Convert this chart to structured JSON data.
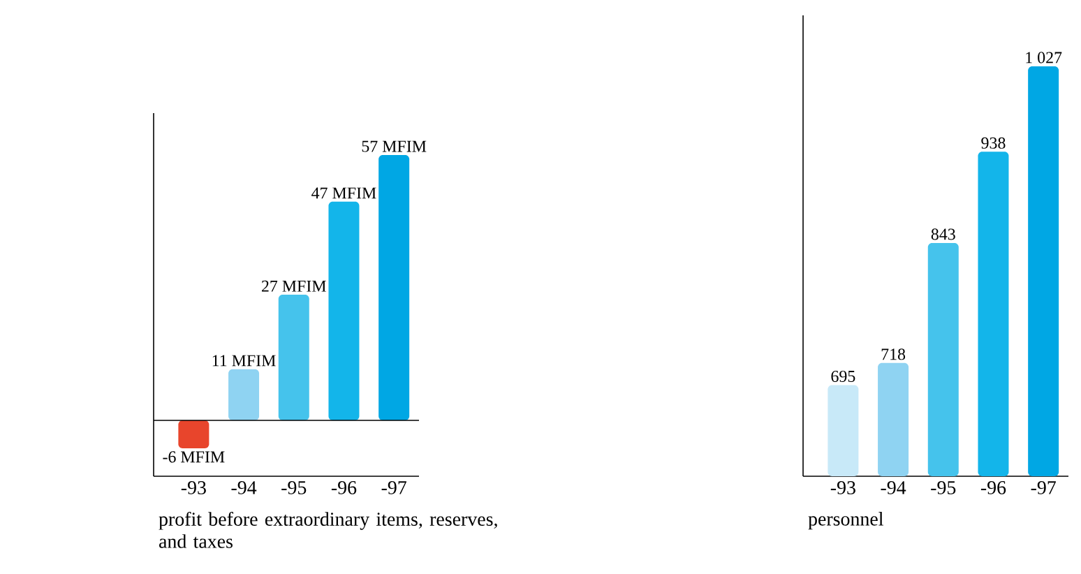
{
  "chart_data": [
    {
      "type": "bar",
      "categories": [
        "-93",
        "-94",
        "-95",
        "-96",
        "-97"
      ],
      "values": [
        -6,
        11,
        27,
        47,
        57
      ],
      "value_labels": [
        "-6 MFIM",
        "11 MFIM",
        "27 MFIM",
        "47 MFIM",
        "57 MFIM"
      ],
      "colors": [
        "#e8452c",
        "#8fd3f2",
        "#45c3ec",
        "#13b5ea",
        "#00a7e4"
      ],
      "ylim": [
        -12,
        66
      ],
      "xlabel": "profit before extraordinary items, reserves, and taxes",
      "tick_labels": "x"
    },
    {
      "type": "bar",
      "categories": [
        "-93",
        "-94",
        "-95",
        "-96",
        "-97"
      ],
      "values": [
        695,
        718,
        843,
        938,
        1027
      ],
      "value_labels": [
        "695",
        "718",
        "843",
        "938",
        "1 027"
      ],
      "colors": [
        "#c8e9f8",
        "#8fd3f2",
        "#45c3ec",
        "#13b5ea",
        "#00a7e4"
      ],
      "ylim": [
        600,
        1080
      ],
      "xlabel": "personnel",
      "tick_labels": "x"
    }
  ]
}
